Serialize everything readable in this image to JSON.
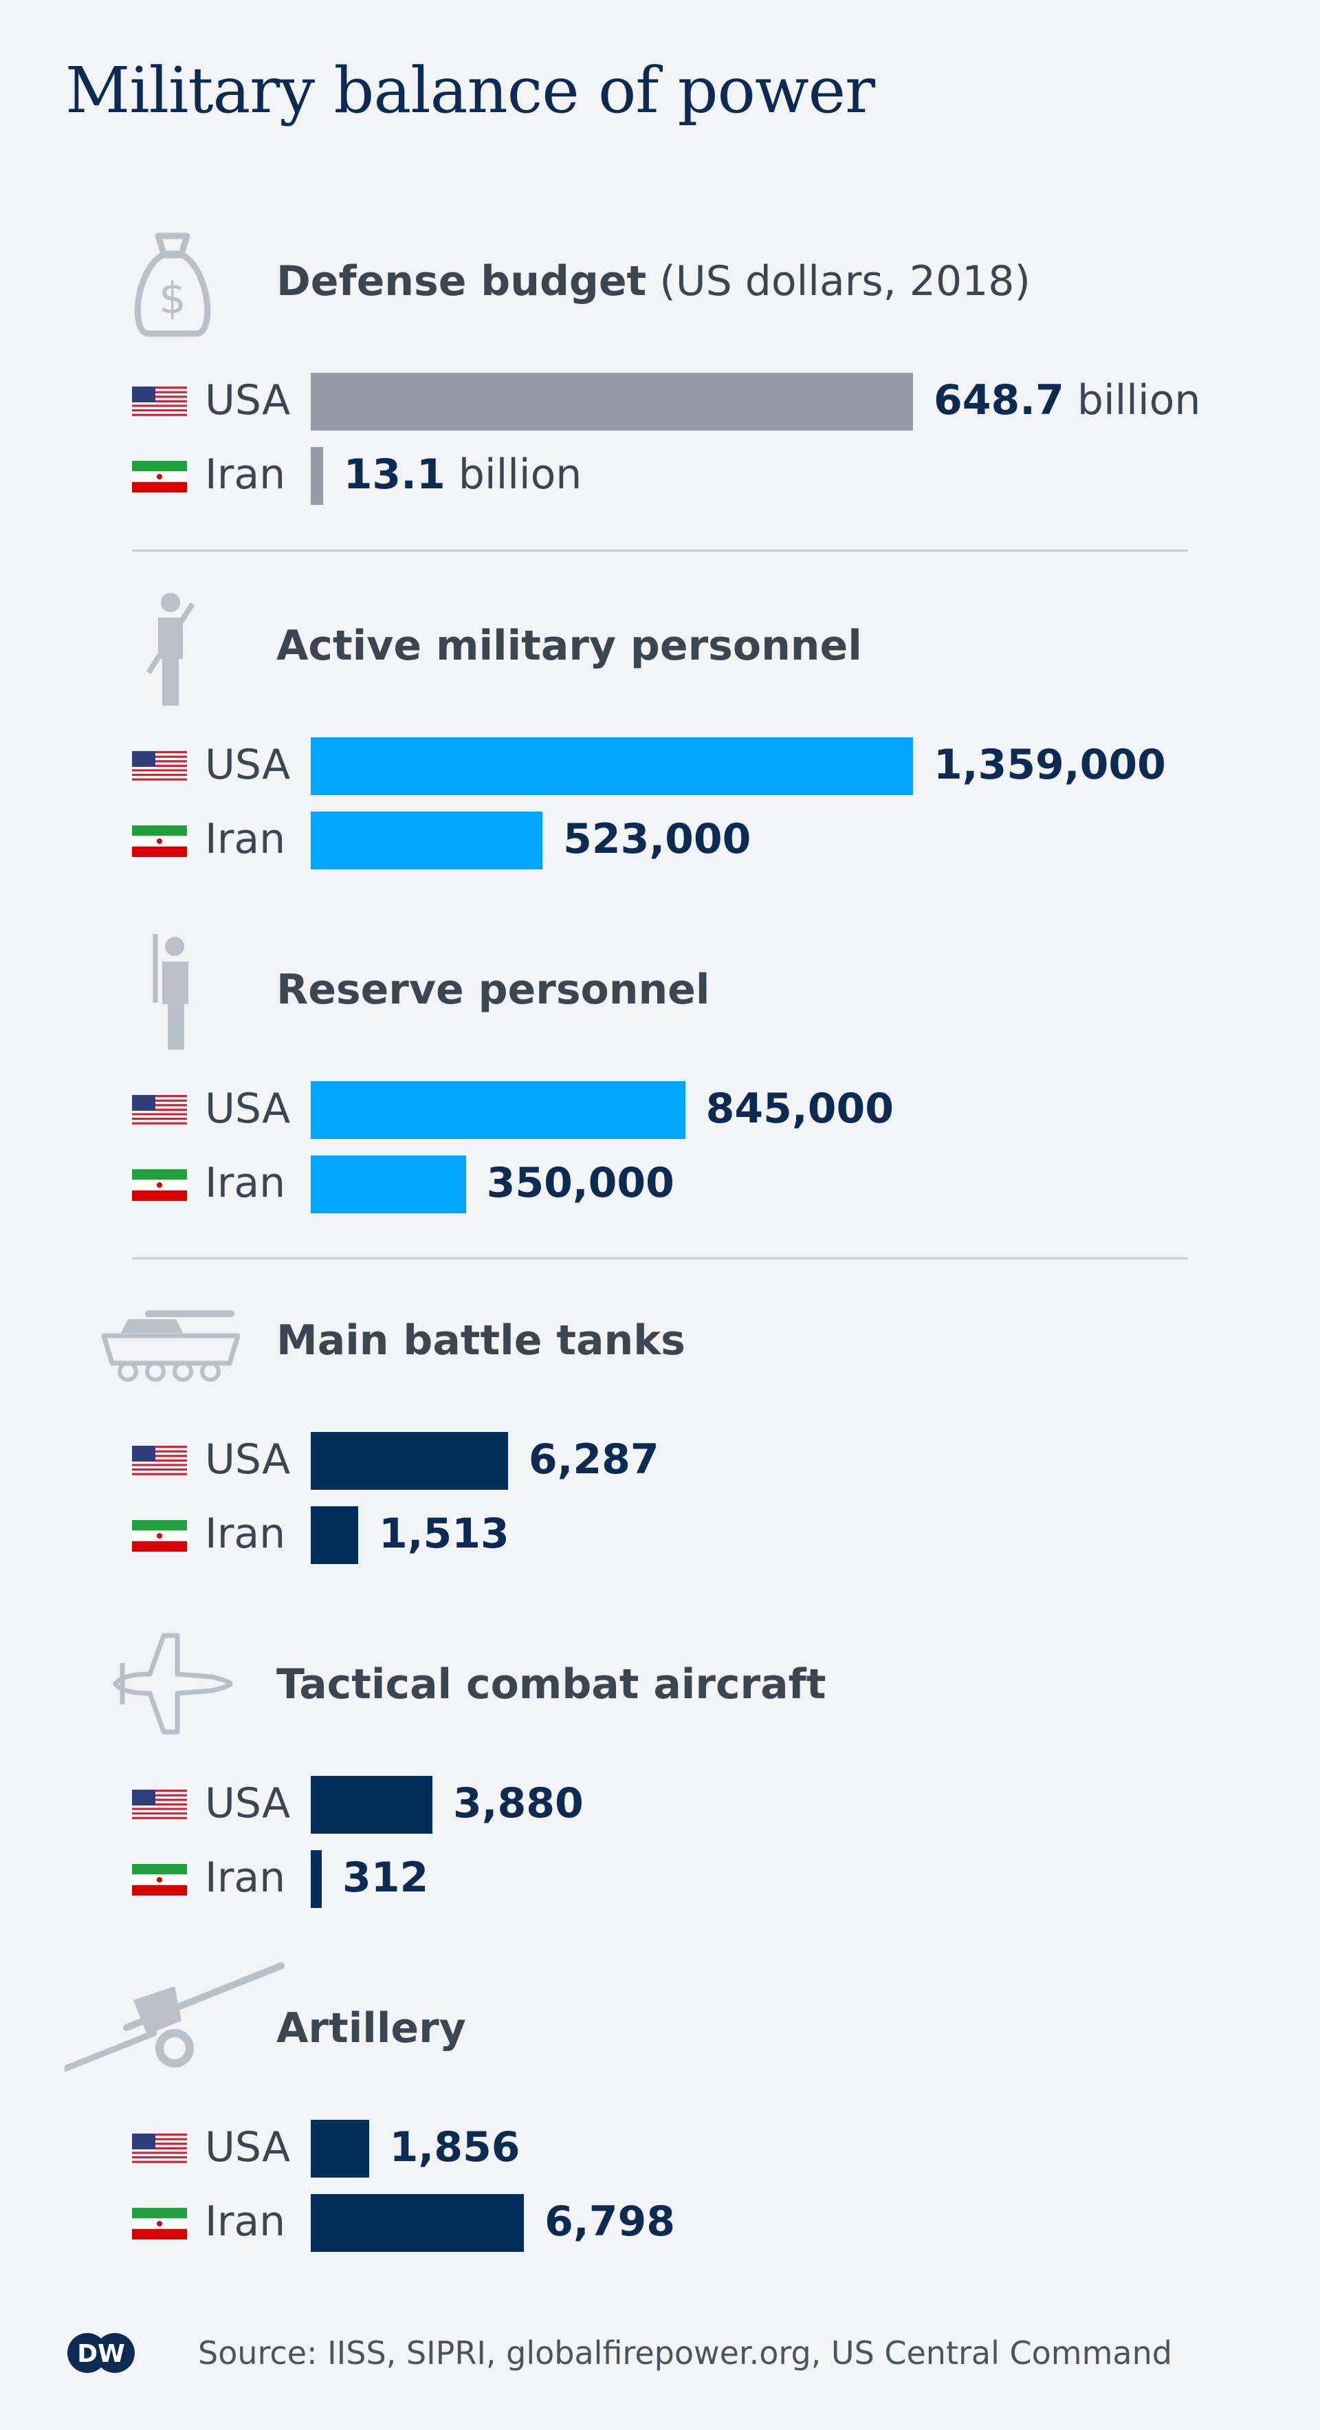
{
  "title": "Military balance of power",
  "colors": {
    "grey": "#949ba5",
    "light_blue": "#00a5ff",
    "navy": "#002d5a"
  },
  "chart_data": [
    {
      "type": "bar",
      "title": "Defense budget",
      "unit": "(US dollars, 2018)",
      "icon": "money-bag-icon",
      "color": "#949ba5",
      "categories": [
        "USA",
        "Iran"
      ],
      "values": [
        648.7,
        13.1
      ],
      "labels": [
        "648.7",
        "13.1"
      ],
      "suffix": "billion",
      "max": 648.7
    },
    {
      "type": "bar",
      "title": "Active military personnel",
      "unit": "",
      "icon": "soldier-icon",
      "color": "#00a5ff",
      "categories": [
        "USA",
        "Iran"
      ],
      "values": [
        1359000,
        523000
      ],
      "labels": [
        "1,359,000",
        "523,000"
      ],
      "suffix": "",
      "max": 1359000
    },
    {
      "type": "bar",
      "title": "Reserve personnel",
      "unit": "",
      "icon": "reserve-soldier-icon",
      "color": "#00a5ff",
      "categories": [
        "USA",
        "Iran"
      ],
      "values": [
        845000,
        350000
      ],
      "labels": [
        "845,000",
        "350,000"
      ],
      "suffix": "",
      "max": 1359000
    },
    {
      "type": "bar",
      "title": "Main battle tanks",
      "unit": "",
      "icon": "tank-icon",
      "color": "#002d5a",
      "categories": [
        "USA",
        "Iran"
      ],
      "values": [
        6287,
        1513
      ],
      "labels": [
        "6,287",
        "1,513"
      ],
      "suffix": "",
      "max": 19200
    },
    {
      "type": "bar",
      "title": "Tactical combat aircraft",
      "unit": "",
      "icon": "jet-icon",
      "color": "#002d5a",
      "categories": [
        "USA",
        "Iran"
      ],
      "values": [
        3880,
        312
      ],
      "labels": [
        "3,880",
        "312"
      ],
      "suffix": "",
      "max": 19200
    },
    {
      "type": "bar",
      "title": "Artillery",
      "unit": "",
      "icon": "artillery-icon",
      "color": "#002d5a",
      "categories": [
        "USA",
        "Iran"
      ],
      "values": [
        1856,
        6798
      ],
      "labels": [
        "1,856",
        "6,798"
      ],
      "suffix": "",
      "max": 19200
    }
  ],
  "logo_text": "DW",
  "source": "Source: IISS, SIPRI, globalfirepower.org, US Central Command"
}
